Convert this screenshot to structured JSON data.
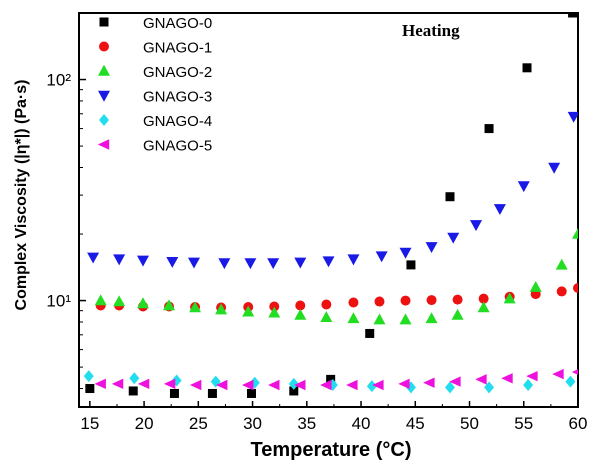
{
  "chart_data": {
    "type": "scatter",
    "annotation": "Heating",
    "xlabel": "Temperature (°C)",
    "ylabel": "Complex Viscosity (|η*|) (Pa·s)",
    "xlim": [
      14,
      60
    ],
    "ylim": [
      3.3,
      200
    ],
    "yscale": "log",
    "legend_position": "top-left",
    "x_ticks": [
      15,
      20,
      25,
      30,
      35,
      40,
      45,
      50,
      55,
      60
    ],
    "x_tick_labels": [
      "15",
      "20",
      "25",
      "30",
      "35",
      "40",
      "45",
      "50",
      "55",
      "60"
    ],
    "y_ticks": [
      10,
      100
    ],
    "y_tick_labels": [
      "10¹",
      "10²"
    ],
    "series": [
      {
        "name": "GNAGO-0",
        "marker": "square",
        "color": "#000000",
        "points": [
          [
            15.0,
            4.0
          ],
          [
            19.0,
            3.9
          ],
          [
            22.8,
            3.8
          ],
          [
            26.3,
            3.8
          ],
          [
            29.9,
            3.8
          ],
          [
            33.8,
            3.9
          ],
          [
            37.2,
            4.4
          ],
          [
            40.8,
            7.1
          ],
          [
            44.6,
            14.5
          ],
          [
            48.2,
            29.5
          ],
          [
            51.8,
            60
          ],
          [
            55.3,
            113
          ],
          [
            59.5,
            200
          ]
        ]
      },
      {
        "name": "GNAGO-1",
        "marker": "circle",
        "color": "#ee1111",
        "points": [
          [
            16.0,
            9.5
          ],
          [
            17.7,
            9.5
          ],
          [
            19.9,
            9.4
          ],
          [
            22.3,
            9.4
          ],
          [
            24.7,
            9.35
          ],
          [
            27.1,
            9.3
          ],
          [
            29.6,
            9.35
          ],
          [
            32.0,
            9.4
          ],
          [
            34.4,
            9.5
          ],
          [
            36.8,
            9.6
          ],
          [
            39.3,
            9.8
          ],
          [
            41.7,
            9.9
          ],
          [
            44.1,
            10.0
          ],
          [
            46.5,
            10.05
          ],
          [
            48.9,
            10.1
          ],
          [
            51.3,
            10.2
          ],
          [
            53.7,
            10.4
          ],
          [
            56.1,
            10.7
          ],
          [
            58.5,
            11.0
          ],
          [
            60.0,
            11.4
          ]
        ]
      },
      {
        "name": "GNAGO-2",
        "marker": "triangle-up",
        "color": "#22dd22",
        "points": [
          [
            16.0,
            10.0
          ],
          [
            17.7,
            9.9
          ],
          [
            19.9,
            9.7
          ],
          [
            22.3,
            9.5
          ],
          [
            24.7,
            9.3
          ],
          [
            27.1,
            9.1
          ],
          [
            29.6,
            8.9
          ],
          [
            32.0,
            8.8
          ],
          [
            34.4,
            8.6
          ],
          [
            36.8,
            8.4
          ],
          [
            39.3,
            8.3
          ],
          [
            41.7,
            8.2
          ],
          [
            44.1,
            8.2
          ],
          [
            46.5,
            8.3
          ],
          [
            48.9,
            8.6
          ],
          [
            51.3,
            9.3
          ],
          [
            53.7,
            10.2
          ],
          [
            56.1,
            11.5
          ],
          [
            58.5,
            14.5
          ],
          [
            60.0,
            20.0
          ]
        ]
      },
      {
        "name": "GNAGO-3",
        "marker": "triangle-down",
        "color": "#1a1ae6",
        "points": [
          [
            15.3,
            15.7
          ],
          [
            17.7,
            15.4
          ],
          [
            19.9,
            15.2
          ],
          [
            22.6,
            15.0
          ],
          [
            24.6,
            14.9
          ],
          [
            27.4,
            14.8
          ],
          [
            29.8,
            14.8
          ],
          [
            31.9,
            14.8
          ],
          [
            34.4,
            14.9
          ],
          [
            37.0,
            15.1
          ],
          [
            39.3,
            15.4
          ],
          [
            41.9,
            15.9
          ],
          [
            44.1,
            16.5
          ],
          [
            46.5,
            17.5
          ],
          [
            48.5,
            19.3
          ],
          [
            50.6,
            22.0
          ],
          [
            52.8,
            26.0
          ],
          [
            55.0,
            33.0
          ],
          [
            57.8,
            40.0
          ],
          [
            59.6,
            68.0
          ]
        ]
      },
      {
        "name": "GNAGO-4",
        "marker": "diamond",
        "color": "#22ddee",
        "points": [
          [
            14.9,
            4.55
          ],
          [
            19.1,
            4.45
          ],
          [
            23.0,
            4.35
          ],
          [
            26.6,
            4.3
          ],
          [
            30.2,
            4.25
          ],
          [
            33.8,
            4.2
          ],
          [
            37.4,
            4.15
          ],
          [
            41.0,
            4.1
          ],
          [
            44.6,
            4.05
          ],
          [
            48.2,
            4.05
          ],
          [
            51.8,
            4.05
          ],
          [
            55.4,
            4.15
          ],
          [
            59.3,
            4.3
          ]
        ]
      },
      {
        "name": "GNAGO-5",
        "marker": "triangle-left",
        "color": "#ee11dd",
        "points": [
          [
            16.0,
            4.2
          ],
          [
            17.6,
            4.2
          ],
          [
            20.0,
            4.2
          ],
          [
            22.4,
            4.2
          ],
          [
            24.8,
            4.15
          ],
          [
            27.2,
            4.15
          ],
          [
            29.6,
            4.15
          ],
          [
            32.0,
            4.15
          ],
          [
            34.4,
            4.15
          ],
          [
            36.8,
            4.15
          ],
          [
            39.2,
            4.15
          ],
          [
            41.6,
            4.15
          ],
          [
            44.0,
            4.2
          ],
          [
            46.3,
            4.25
          ],
          [
            48.7,
            4.3
          ],
          [
            51.1,
            4.4
          ],
          [
            53.5,
            4.45
          ],
          [
            55.8,
            4.55
          ],
          [
            58.2,
            4.65
          ],
          [
            60.0,
            4.75
          ]
        ]
      }
    ]
  }
}
